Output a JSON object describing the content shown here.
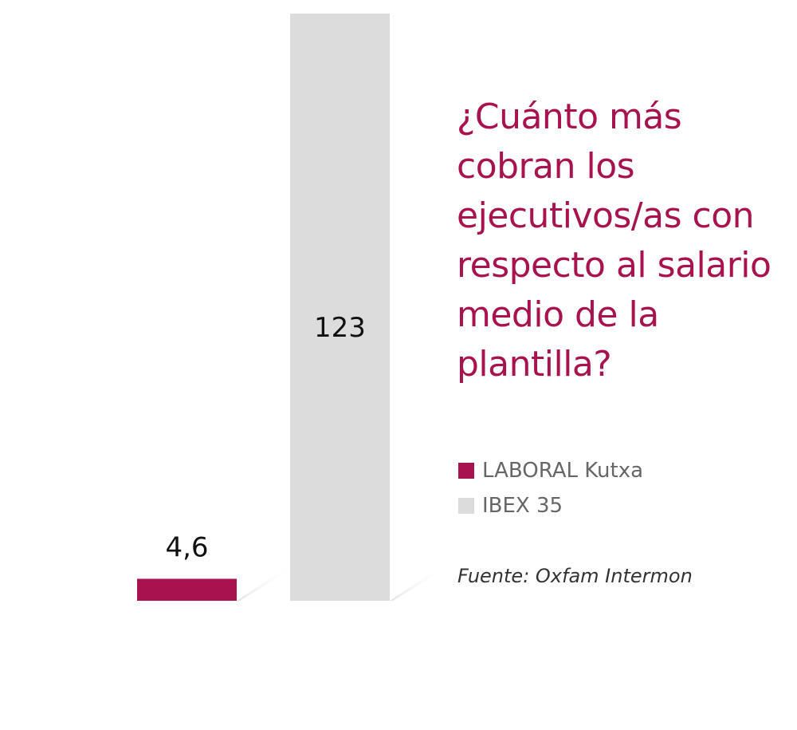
{
  "colors": {
    "accent": "#a8134f",
    "ibex": "#dcdcdc",
    "shadow": "#e8e8e8"
  },
  "chart_data": {
    "type": "bar",
    "title": "¿Cuánto más cobran los ejecutivos/as con respecto al salario medio de la plantilla?",
    "categories": [
      "LABORAL Kutxa",
      "IBEX 35"
    ],
    "values": [
      4.6,
      123
    ],
    "value_labels": [
      "4,6",
      "123"
    ],
    "colors": [
      "#a8134f",
      "#dcdcdc"
    ],
    "legend": [
      {
        "label": "LABORAL Kutxa",
        "color": "#a8134f"
      },
      {
        "label": "IBEX 35",
        "color": "#dcdcdc"
      }
    ],
    "legend_placement": "right",
    "ylim": [
      0,
      123
    ],
    "grid": false,
    "source": "Fuente: Oxfam Intermon"
  }
}
